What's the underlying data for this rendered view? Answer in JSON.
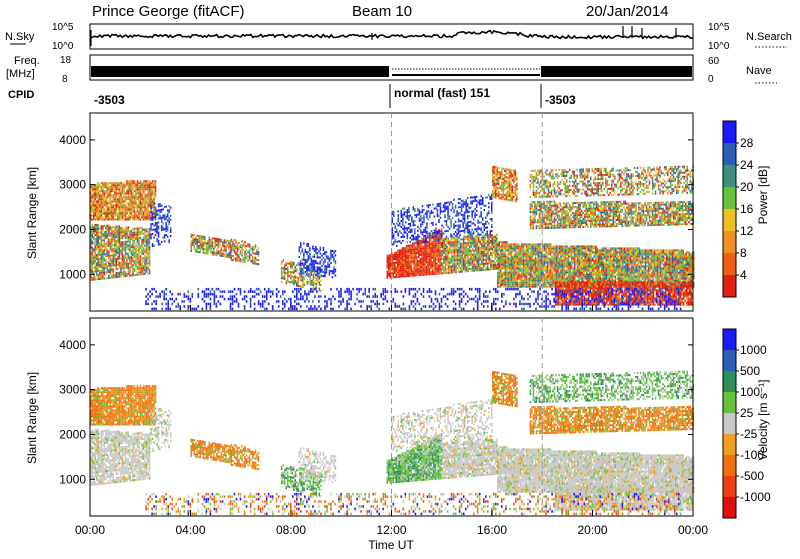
{
  "header": {
    "station": "Prince George (fitACF)",
    "beam": "Beam 10",
    "date": "20/Jan/2014"
  },
  "noise_panel": {
    "left_label": "N.Sky",
    "left_ticks": [
      "10^5",
      "10^0"
    ],
    "right_ticks": [
      "10^5",
      "10^0"
    ],
    "right_label": "N.Search"
  },
  "freq_panel": {
    "left_label_1": "Freq.",
    "left_label_2": "[MHz]",
    "left_ticks": [
      "18",
      "8"
    ],
    "right_ticks": [
      "60",
      "0"
    ],
    "right_label": "Nave"
  },
  "cpid": {
    "label": "CPID",
    "segments": [
      {
        "text": "-3503",
        "start_hour": 0
      },
      {
        "text": "normal (fast) 151",
        "start_hour": 12
      },
      {
        "text": "-3503",
        "start_hour": 18
      }
    ]
  },
  "colors": {
    "power_scale": [
      "#1a1aff",
      "#2a5fb4",
      "#3f8f80",
      "#67c23a",
      "#f0c020",
      "#f09020",
      "#f06010",
      "#e02010"
    ],
    "velocity_scale": [
      "#1a1aff",
      "#2a5fb4",
      "#2e8f5a",
      "#67c23a",
      "#c8c8c8",
      "#f0a020",
      "#f07010",
      "#f04010",
      "#e01010"
    ],
    "ground_gray": "#c8c8c8"
  },
  "chart_data": [
    {
      "type": "heatmap",
      "panel": "power",
      "ylabel": "Slant Range [km]",
      "xlabel": "",
      "x_ticks": [
        "00:00",
        "04:00",
        "08:00",
        "12:00",
        "16:00",
        "20:00",
        "00:00"
      ],
      "xlim_hours": [
        0,
        24
      ],
      "ylim": [
        180,
        4600
      ],
      "y_ticks": [
        1000,
        2000,
        3000,
        4000
      ],
      "colorbar": {
        "label": "Power [dB]",
        "ticks": [
          "28",
          "24",
          "20",
          "16",
          "12",
          "8",
          "4"
        ],
        "range": [
          0,
          30
        ]
      }
    },
    {
      "type": "heatmap",
      "panel": "velocity",
      "ylabel": "Slant Range [km]",
      "xlabel": "Time UT",
      "x_ticks": [
        "00:00",
        "04:00",
        "08:00",
        "12:00",
        "16:00",
        "20:00",
        "00:00"
      ],
      "xlim_hours": [
        0,
        24
      ],
      "ylim": [
        180,
        4600
      ],
      "y_ticks": [
        1000,
        2000,
        3000,
        4000
      ],
      "colorbar": {
        "label": "Velocity [m s⁻¹]",
        "ticks": [
          "1000",
          "500",
          "100",
          "25",
          "-25",
          "-100",
          "-500",
          "-1000"
        ]
      }
    }
  ]
}
